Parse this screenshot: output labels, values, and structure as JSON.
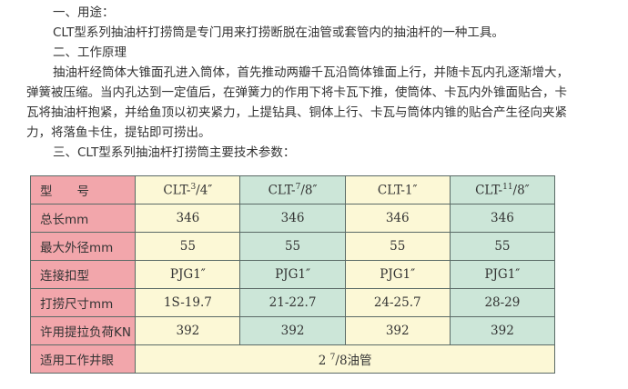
{
  "paragraphs": [
    {
      "text": "一、用途：",
      "indent": true
    },
    {
      "text": "CLT型系列抽油杆打捞筒是专门用来打捞断脱在油管或套管内的抽油杆的一种工具。",
      "indent": true
    },
    {
      "text": "二、工作原理",
      "indent": true
    },
    {
      "text": "抽油杆经筒体大锥面孔进入筒体，首先推动两瓣千瓦沿筒体锥面上行，并随卡瓦内孔逐渐增大，弹簧被压缩。当内孔达到一定值后，在弹簧力的作用下将卡瓦下推，使筒体、卡瓦内外锥面贴合，卡瓦将抽油杆抱紧，并给鱼顶以初夹紧力，上提钻具、铜体上行、卡瓦与筒体内锥的贴合产生径向夹紧力，将落鱼卡住，提钻即可捞出。",
      "indent": true
    },
    {
      "text": "三、CLT型系列抽油杆打捞筒主要技术参数：",
      "indent": true
    }
  ],
  "table": {
    "header": {
      "label": "型　　号",
      "models": [
        {
          "prefix": "CLT-",
          "sup": "3",
          "rest": "/4″"
        },
        {
          "prefix": "CLT-",
          "sup": "7",
          "rest": "/8″"
        },
        {
          "prefix": "CLT-1″",
          "sup": "",
          "rest": ""
        },
        {
          "prefix": "CLT-",
          "sup": "11",
          "rest": "/8″"
        }
      ]
    },
    "rows": [
      {
        "label": "总长mm",
        "values": [
          "346",
          "346",
          "346",
          "346"
        ]
      },
      {
        "label": "最大外径mm",
        "values": [
          "55",
          "55",
          "55",
          "55"
        ]
      },
      {
        "label": "连接扣型",
        "values": [
          "PJG1″",
          "PJG1″",
          "PJG1″",
          "PJG1″"
        ]
      },
      {
        "label": "打捞尺寸mm",
        "values": [
          "1S-19.7",
          "21-22.7",
          "24-25.7",
          "28-29"
        ]
      },
      {
        "label": "许用提拉负荷KN",
        "values": [
          "392",
          "392",
          "392",
          "392"
        ]
      }
    ],
    "footer": {
      "label": "适用工作井眼",
      "value_prefix": "2 ",
      "value_sup": "7",
      "value_rest": "/8油管"
    }
  },
  "colors": {
    "label_col": "#f2a6ab",
    "yellow_col": "#fcf8d6",
    "green_col": "#cce6d8"
  }
}
